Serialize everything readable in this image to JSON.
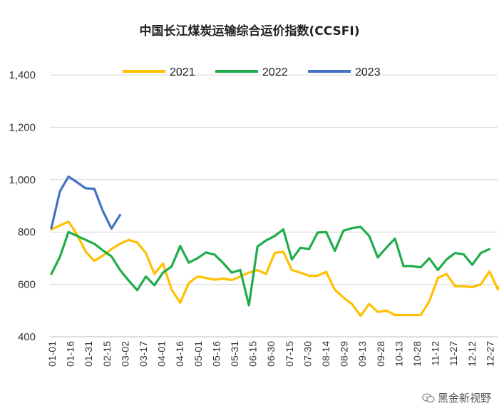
{
  "chart_data": {
    "type": "line",
    "title": "中国长江煤炭运输综合运价指数(CCSFI)",
    "xlabel": "",
    "ylabel": "",
    "ylim": [
      400,
      1400
    ],
    "yticks": [
      "400",
      "600",
      "800",
      "1,000",
      "1,200",
      "1,400"
    ],
    "ytick_values": [
      400,
      600,
      800,
      1000,
      1200,
      1400
    ],
    "grid": true,
    "legend_position": "top",
    "x_tick_labels": [
      "01-01",
      "01-16",
      "01-31",
      "02-15",
      "03-02",
      "03-17",
      "04-01",
      "04-16",
      "05-01",
      "05-16",
      "05-31",
      "06-15",
      "06-30",
      "07-15",
      "07-30",
      "08-14",
      "08-29",
      "09-13",
      "09-28",
      "10-13",
      "10-28",
      "11-12",
      "11-27",
      "12-12",
      "12-27"
    ],
    "series": [
      {
        "name": "2021",
        "color": "#FFC000",
        "values": [
          810,
          825,
          840,
          790,
          725,
          690,
          710,
          735,
          755,
          770,
          760,
          720,
          640,
          680,
          580,
          530,
          605,
          630,
          625,
          618,
          622,
          617,
          630,
          645,
          655,
          640,
          720,
          725,
          655,
          645,
          633,
          633,
          648,
          580,
          550,
          525,
          480,
          525,
          495,
          500,
          483,
          483,
          483,
          483,
          535,
          625,
          640,
          593,
          593,
          590,
          600,
          650,
          580,
          650,
          610
        ]
      },
      {
        "name": "2022",
        "color": "#1FAD4A",
        "values": [
          640,
          705,
          800,
          785,
          770,
          755,
          730,
          707,
          655,
          615,
          578,
          630,
          597,
          645,
          668,
          747,
          683,
          700,
          722,
          714,
          682,
          645,
          655,
          520,
          745,
          768,
          785,
          810,
          695,
          740,
          735,
          798,
          800,
          728,
          805,
          815,
          820,
          785,
          703,
          740,
          775,
          670,
          670,
          665,
          700,
          655,
          695,
          720,
          715,
          675,
          720,
          735
        ]
      },
      {
        "name": "2023",
        "color": "#4472C4",
        "values": [
          815,
          955,
          1012,
          990,
          967,
          965,
          880,
          813,
          865
        ]
      }
    ]
  },
  "watermark": {
    "text": "黑金新视野",
    "icon": "wechat-icon"
  }
}
